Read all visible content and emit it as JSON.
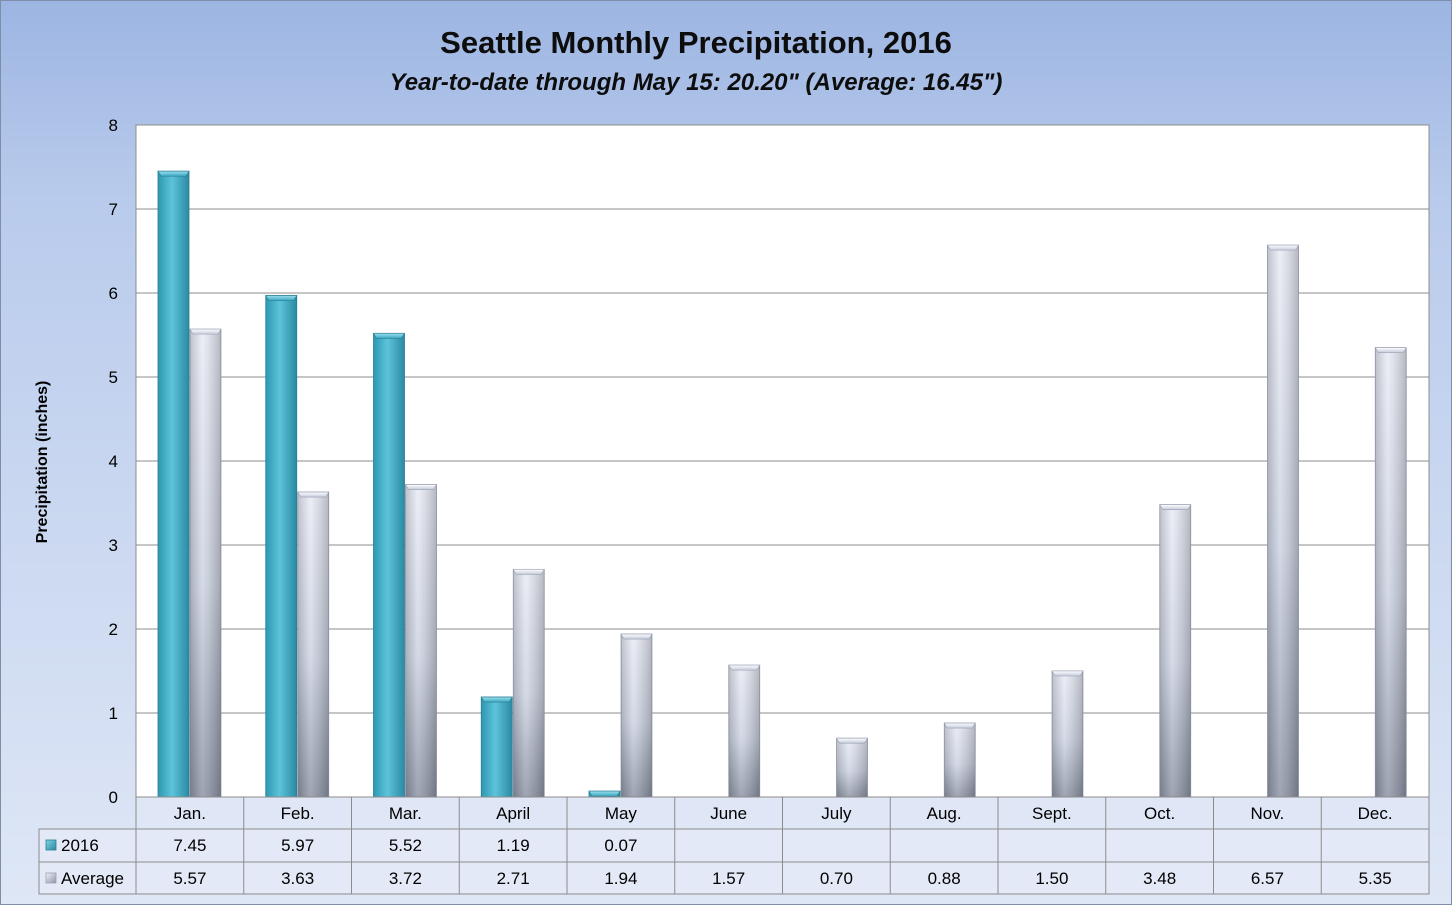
{
  "chart_data": {
    "type": "bar",
    "title": "Seattle Monthly Precipitation, 2016",
    "subtitle": "Year-to-date through May 15: 20.20\" (Average: 16.45\")",
    "ylabel": "Precipitation (inches)",
    "xlabel": "",
    "ylim": [
      0,
      8
    ],
    "yticks": [
      0,
      1,
      2,
      3,
      4,
      5,
      6,
      7,
      8
    ],
    "grid": true,
    "categories": [
      "Jan.",
      "Feb.",
      "Mar.",
      "April",
      "May",
      "June",
      "July",
      "Aug.",
      "Sept.",
      "Oct.",
      "Nov.",
      "Dec."
    ],
    "series": [
      {
        "name": "2016",
        "color": "#4bb5cc",
        "values": [
          7.45,
          5.97,
          5.52,
          1.19,
          0.07,
          null,
          null,
          null,
          null,
          null,
          null,
          null
        ],
        "labels": [
          "7.45",
          "5.97",
          "5.52",
          "1.19",
          "0.07",
          "",
          "",
          "",
          "",
          "",
          "",
          ""
        ]
      },
      {
        "name": "Average",
        "color": "#c9d0e2",
        "values": [
          5.57,
          3.63,
          3.72,
          2.71,
          1.94,
          1.57,
          0.7,
          0.88,
          1.5,
          3.48,
          6.57,
          5.35
        ],
        "labels": [
          "5.57",
          "3.63",
          "3.72",
          "2.71",
          "1.94",
          "1.57",
          "0.70",
          "0.88",
          "1.50",
          "3.48",
          "6.57",
          "5.35"
        ]
      }
    ],
    "data_table": true
  }
}
